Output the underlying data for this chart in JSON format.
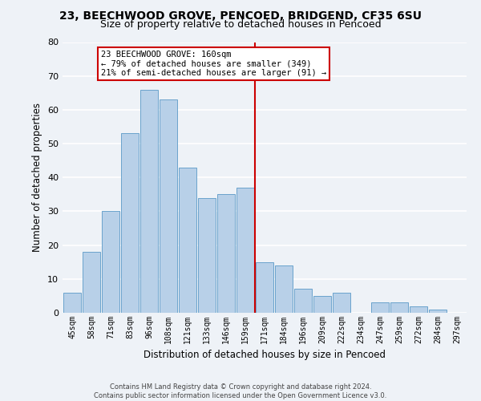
{
  "title1": "23, BEECHWOOD GROVE, PENCOED, BRIDGEND, CF35 6SU",
  "title2": "Size of property relative to detached houses in Pencoed",
  "xlabel": "Distribution of detached houses by size in Pencoed",
  "ylabel": "Number of detached properties",
  "categories": [
    "45sqm",
    "58sqm",
    "71sqm",
    "83sqm",
    "96sqm",
    "108sqm",
    "121sqm",
    "133sqm",
    "146sqm",
    "159sqm",
    "171sqm",
    "184sqm",
    "196sqm",
    "209sqm",
    "222sqm",
    "234sqm",
    "247sqm",
    "259sqm",
    "272sqm",
    "284sqm",
    "297sqm"
  ],
  "values": [
    6,
    18,
    30,
    53,
    66,
    63,
    43,
    34,
    35,
    37,
    15,
    14,
    7,
    5,
    6,
    0,
    3,
    3,
    2,
    1,
    0
  ],
  "bar_color": "#b8d0e8",
  "bar_edge_color": "#6aa3cc",
  "vline_color": "#cc0000",
  "annotation_title": "23 BEECHWOOD GROVE: 160sqm",
  "annotation_line2": "← 79% of detached houses are smaller (349)",
  "annotation_line3": "21% of semi-detached houses are larger (91) →",
  "annotation_box_edge": "#cc0000",
  "annotation_box_bg": "#ffffff",
  "ylim": [
    0,
    80
  ],
  "yticks": [
    0,
    10,
    20,
    30,
    40,
    50,
    60,
    70,
    80
  ],
  "footer1": "Contains HM Land Registry data © Crown copyright and database right 2024.",
  "footer2": "Contains public sector information licensed under the Open Government Licence v3.0.",
  "bg_color": "#eef2f7",
  "grid_color": "#ffffff",
  "title1_fontsize": 10,
  "title2_fontsize": 9
}
